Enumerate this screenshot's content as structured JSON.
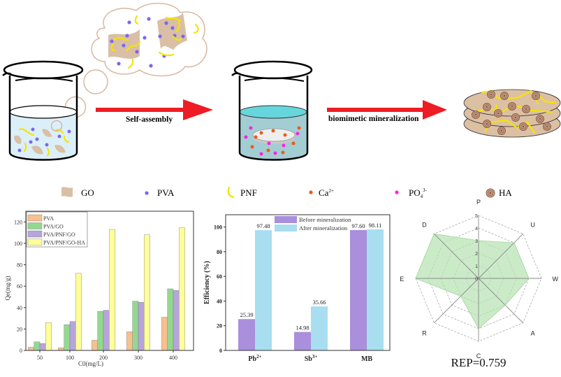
{
  "schematic": {
    "step1_label": "Self-assembly",
    "step2_label": "biomimetic mineralization"
  },
  "legend": [
    {
      "label": "GO",
      "icon": "go-sheet-icon",
      "color": "#d9bfa5"
    },
    {
      "label": "PVA",
      "icon": "pva-dot-icon",
      "color": "#7b68ee"
    },
    {
      "label": "PNF",
      "icon": "pnf-fiber-icon",
      "color": "#f5e400"
    },
    {
      "label": "Ca",
      "sup": "2+",
      "icon": "ca-dot-icon",
      "color": "#f05a14"
    },
    {
      "label": "PO",
      "sub": "4",
      "sup": "3-",
      "icon": "po4-dot-icon",
      "color": "#ff22dd"
    },
    {
      "label": "HA",
      "icon": "ha-particle-icon",
      "color": "#a0705a"
    }
  ],
  "chart_data": [
    {
      "type": "bar",
      "title": "",
      "xlabel": "C0(mg/L)",
      "ylabel": "Qe(mg/g)",
      "categories": [
        "50",
        "100",
        "200",
        "300",
        "400"
      ],
      "ylim": [
        0,
        130
      ],
      "yticks": [
        0,
        20,
        40,
        60,
        80,
        100,
        120
      ],
      "legend_position": "top-left",
      "series": [
        {
          "name": "PVA",
          "color": "#f8c08f",
          "values": [
            3,
            2.5,
            9.5,
            17.5,
            31
          ]
        },
        {
          "name": "PVA/GO",
          "color": "#93d88f",
          "values": [
            8,
            24,
            36.5,
            46,
            57.5
          ]
        },
        {
          "name": "PVA/PNF/GO",
          "color": "#b7a4dc",
          "values": [
            6.5,
            27,
            37.5,
            45,
            56
          ]
        },
        {
          "name": "PVA/PNF/GO-HA",
          "color": "#ffff99",
          "values": [
            26,
            72,
            113,
            108,
            114.5
          ]
        }
      ]
    },
    {
      "type": "bar",
      "title": "",
      "xlabel": "",
      "ylabel": "Efficiency (%)",
      "categories": [
        "Pb",
        "Sb",
        "MB"
      ],
      "category_sups": [
        "2+",
        "3+",
        ""
      ],
      "ylim": [
        0,
        110
      ],
      "yticks": [
        0,
        20,
        40,
        60,
        80,
        100
      ],
      "legend_position": "top-center",
      "series": [
        {
          "name": "Before mineralization",
          "color": "#a98fdc",
          "values": [
            25.39,
            14.98,
            97.6
          ],
          "labels": [
            "25.39",
            "14.98",
            "97.60"
          ]
        },
        {
          "name": "After mineralization",
          "color": "#a8def0",
          "values": [
            97.48,
            35.66,
            98.11
          ],
          "labels": [
            "97.48",
            "35.66",
            "98.11"
          ]
        }
      ]
    },
    {
      "type": "radar",
      "axes": [
        "P",
        "U",
        "W",
        "A",
        "C",
        "R",
        "E",
        "D"
      ],
      "values": [
        3,
        4,
        4,
        3,
        4,
        2,
        5,
        5
      ],
      "rlim": [
        0,
        5
      ],
      "rticks": [
        "0",
        "1",
        "2",
        "3",
        "4",
        "5"
      ],
      "fill_color": "#b5e3b0",
      "caption": "REP=0.759"
    }
  ]
}
